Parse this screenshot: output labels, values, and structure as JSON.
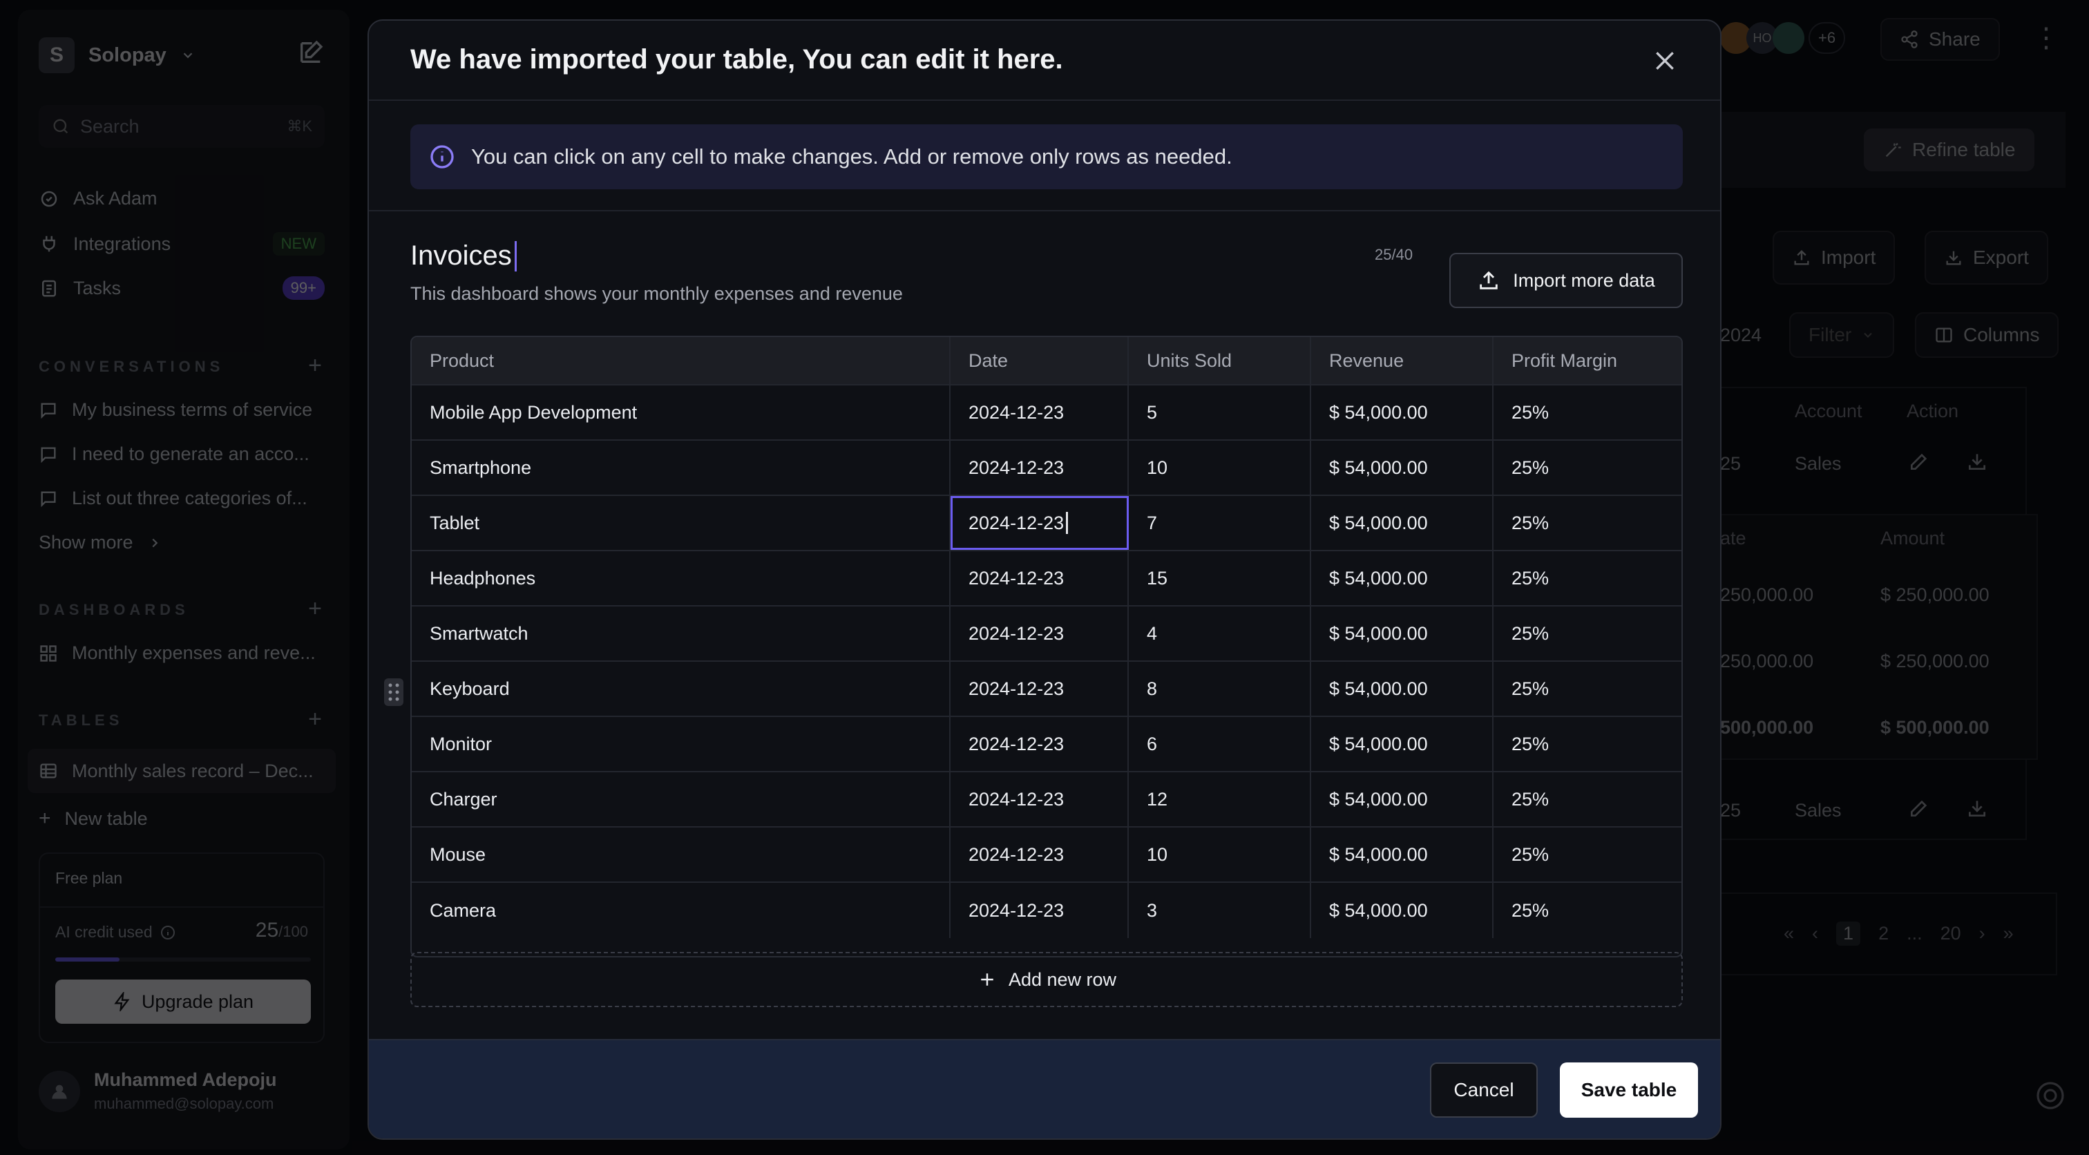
{
  "sidebar": {
    "workspace_initial": "S",
    "workspace_name": "Solopay",
    "search_placeholder": "Search",
    "search_shortcut": "⌘K",
    "nav": [
      {
        "label": "Ask Adam"
      },
      {
        "label": "Integrations",
        "badge": "NEW"
      },
      {
        "label": "Tasks",
        "badge": "99+"
      }
    ],
    "conversations_title": "CONVERSATIONS",
    "conversations": [
      "My business terms of service",
      "I need to generate an acco...",
      "List out three categories of..."
    ],
    "show_more": "Show more",
    "dashboards_title": "DASHBOARDS",
    "dashboards": [
      "Monthly expenses and reve..."
    ],
    "tables_title": "TABLES",
    "tables": [
      "Monthly sales record – Dec..."
    ],
    "new_table": "New table",
    "plan": {
      "name": "Free plan",
      "credit_label": "AI credit used",
      "used": "25",
      "total": "/100",
      "used_fraction": 0.25,
      "upgrade": "Upgrade plan"
    },
    "user": {
      "name": "Muhammed Adepoju",
      "email": "muhammed@solopay.com"
    }
  },
  "background": {
    "avatar_initials": "HO",
    "avatar_more": "+6",
    "share": "Share",
    "refine": "Refine table",
    "import": "Import",
    "export": "Export",
    "year_partial": "2024",
    "filter": "Filter",
    "columns": "Columns",
    "small_table": {
      "headers": [
        "Account",
        "Action"
      ],
      "rows": [
        {
          "value": "25",
          "account": "Sales"
        },
        {
          "value": "25",
          "account": "Sales"
        }
      ]
    },
    "amount_table": {
      "headers": [
        "ate",
        "Amount"
      ],
      "rows": [
        [
          "250,000.00",
          "$ 250,000.00"
        ],
        [
          "250,000.00",
          "$ 250,000.00"
        ],
        [
          "500,000.00",
          "$ 500,000.00"
        ]
      ]
    },
    "pagination": [
      "1",
      "2",
      "...",
      "20"
    ]
  },
  "modal": {
    "title": "We have imported your table, You can edit it here.",
    "info": "You can click on any cell to make changes. Add or remove only rows as needed.",
    "table_title": "Invoices",
    "table_description": "This dashboard shows your monthly expenses and revenue",
    "title_count": "25/40",
    "import_more": "Import more data",
    "columns": [
      "Product",
      "Date",
      "Units Sold",
      "Revenue",
      "Profit Margin"
    ],
    "rows": [
      [
        "Mobile App Development",
        "2024-12-23",
        "5",
        "$ 54,000.00",
        "25%"
      ],
      [
        "Smartphone",
        "2024-12-23",
        "10",
        "$ 54,000.00",
        "25%"
      ],
      [
        "Tablet",
        "2024-12-23",
        "7",
        "$ 54,000.00",
        "25%"
      ],
      [
        "Headphones",
        "2024-12-23",
        "15",
        "$ 54,000.00",
        "25%"
      ],
      [
        "Smartwatch",
        "2024-12-23",
        "4",
        "$ 54,000.00",
        "25%"
      ],
      [
        "Keyboard",
        "2024-12-23",
        "8",
        "$ 54,000.00",
        "25%"
      ],
      [
        "Monitor",
        "2024-12-23",
        "6",
        "$ 54,000.00",
        "25%"
      ],
      [
        "Charger",
        "2024-12-23",
        "12",
        "$ 54,000.00",
        "25%"
      ],
      [
        "Mouse",
        "2024-12-23",
        "10",
        "$ 54,000.00",
        "25%"
      ],
      [
        "Camera",
        "2024-12-23",
        "3",
        "$ 54,000.00",
        "25%"
      ]
    ],
    "add_row": "Add new row",
    "cancel": "Cancel",
    "save": "Save table"
  },
  "colors": {
    "accent": "#6b5cf0",
    "modal_bg": "#0e1015",
    "footer_bg": "#19233a",
    "info_bg": "#1b1c33"
  }
}
